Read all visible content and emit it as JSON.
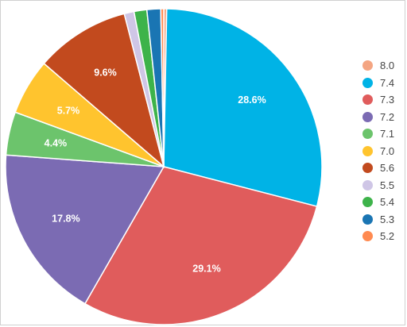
{
  "chart_data": {
    "type": "pie",
    "title": "",
    "legend_position": "right",
    "slices": [
      {
        "label": "8.0",
        "value": 0.3,
        "color": "#f4a582",
        "shown": ""
      },
      {
        "label": "7.4",
        "value": 28.6,
        "color": "#00b3e6",
        "shown": "28.6%"
      },
      {
        "label": "7.3",
        "value": 29.1,
        "color": "#e05c5c",
        "shown": "29.1%"
      },
      {
        "label": "7.2",
        "value": 17.8,
        "color": "#7b6bb3",
        "shown": "17.8%"
      },
      {
        "label": "7.1",
        "value": 4.4,
        "color": "#6cc46c",
        "shown": "4.4%"
      },
      {
        "label": "7.0",
        "value": 5.7,
        "color": "#ffc42e",
        "shown": "5.7%"
      },
      {
        "label": "5.6",
        "value": 9.6,
        "color": "#c24a1e",
        "shown": "9.6%"
      },
      {
        "label": "5.5",
        "value": 1.0,
        "color": "#cfc6e6",
        "shown": ""
      },
      {
        "label": "5.4",
        "value": 1.3,
        "color": "#3db34a",
        "shown": ""
      },
      {
        "label": "5.3",
        "value": 1.4,
        "color": "#1a75b3",
        "shown": ""
      },
      {
        "label": "5.2",
        "value": 0.3,
        "color": "#ff8a50",
        "shown": ""
      }
    ]
  }
}
